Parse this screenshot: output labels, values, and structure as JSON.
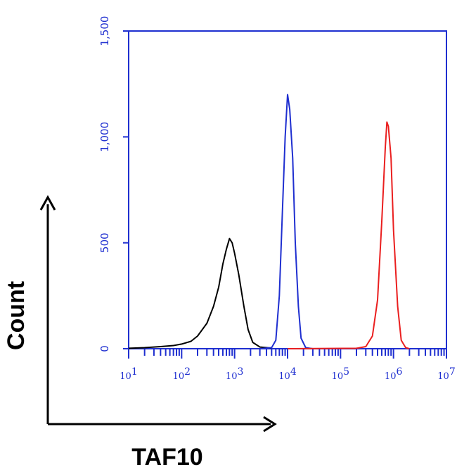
{
  "chart_data": {
    "type": "line",
    "title": "",
    "xlabel": "TAF10",
    "ylabel": "Count",
    "x_scale": "log10",
    "xlim": [
      10,
      10000000
    ],
    "ylim": [
      0,
      1500
    ],
    "y_ticks": [
      0,
      500,
      1000,
      1500
    ],
    "y_tick_labels": [
      "0",
      "500",
      "1,000",
      "1,500"
    ],
    "x_ticks": [
      {
        "base": "10",
        "exp": "1"
      },
      {
        "base": "10",
        "exp": "2"
      },
      {
        "base": "10",
        "exp": "3"
      },
      {
        "base": "10",
        "exp": "4"
      },
      {
        "base": "10",
        "exp": "5"
      },
      {
        "base": "10",
        "exp": "6"
      },
      {
        "base": "10",
        "exp": "7"
      }
    ],
    "grid": false,
    "series": [
      {
        "color": "#000000",
        "points": [
          [
            10,
            2
          ],
          [
            20,
            5
          ],
          [
            40,
            10
          ],
          [
            70,
            15
          ],
          [
            100,
            22
          ],
          [
            150,
            35
          ],
          [
            200,
            60
          ],
          [
            300,
            120
          ],
          [
            400,
            200
          ],
          [
            500,
            290
          ],
          [
            600,
            400
          ],
          [
            700,
            470
          ],
          [
            800,
            520
          ],
          [
            900,
            500
          ],
          [
            1000,
            450
          ],
          [
            1200,
            350
          ],
          [
            1500,
            200
          ],
          [
            1800,
            90
          ],
          [
            2200,
            30
          ],
          [
            3000,
            8
          ],
          [
            5000,
            3
          ]
        ]
      },
      {
        "color": "#1f2fd0",
        "points": [
          [
            3000,
            0
          ],
          [
            5000,
            5
          ],
          [
            6000,
            40
          ],
          [
            7000,
            250
          ],
          [
            8000,
            650
          ],
          [
            9000,
            1000
          ],
          [
            10000,
            1200
          ],
          [
            11000,
            1130
          ],
          [
            12500,
            900
          ],
          [
            14000,
            500
          ],
          [
            16000,
            200
          ],
          [
            18000,
            50
          ],
          [
            22000,
            5
          ],
          [
            30000,
            0
          ]
        ]
      },
      {
        "color": "#ea1f1f",
        "points": [
          [
            10000,
            0
          ],
          [
            200000,
            2
          ],
          [
            300000,
            10
          ],
          [
            400000,
            60
          ],
          [
            500000,
            230
          ],
          [
            600000,
            600
          ],
          [
            700000,
            950
          ],
          [
            750000,
            1070
          ],
          [
            800000,
            1050
          ],
          [
            900000,
            900
          ],
          [
            1000000,
            560
          ],
          [
            1200000,
            200
          ],
          [
            1400000,
            40
          ],
          [
            1700000,
            5
          ],
          [
            2000000,
            0
          ]
        ]
      }
    ]
  }
}
